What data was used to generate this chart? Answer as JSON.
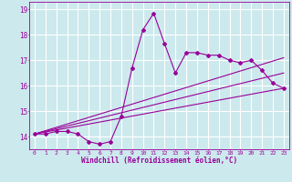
{
  "xlabel": "Windchill (Refroidissement éolien,°C)",
  "bg_color": "#cce9ed",
  "line_color": "#990099",
  "grid_color": "#ffffff",
  "xmin": -0.5,
  "xmax": 23.5,
  "ymin": 13.5,
  "ymax": 19.3,
  "yticks": [
    14,
    15,
    16,
    17,
    18,
    19
  ],
  "xticks": [
    0,
    1,
    2,
    3,
    4,
    5,
    6,
    7,
    8,
    9,
    10,
    11,
    12,
    13,
    14,
    15,
    16,
    17,
    18,
    19,
    20,
    21,
    22,
    23
  ],
  "series1_x": [
    0,
    1,
    2,
    3,
    4,
    5,
    6,
    7,
    8,
    9,
    10,
    11,
    12,
    13,
    14,
    15,
    16,
    17,
    18,
    19,
    20,
    21,
    22,
    23
  ],
  "series1_y": [
    14.1,
    14.1,
    14.2,
    14.2,
    14.1,
    13.8,
    13.7,
    13.8,
    14.8,
    16.7,
    18.2,
    18.85,
    17.65,
    16.5,
    17.3,
    17.3,
    17.2,
    17.2,
    17.0,
    16.9,
    17.0,
    16.6,
    16.1,
    15.9
  ],
  "series2_x": [
    0,
    23
  ],
  "series2_y": [
    14.1,
    15.9
  ],
  "series3_x": [
    0,
    23
  ],
  "series3_y": [
    14.1,
    16.5
  ],
  "series4_x": [
    0,
    23
  ],
  "series4_y": [
    14.1,
    17.1
  ]
}
